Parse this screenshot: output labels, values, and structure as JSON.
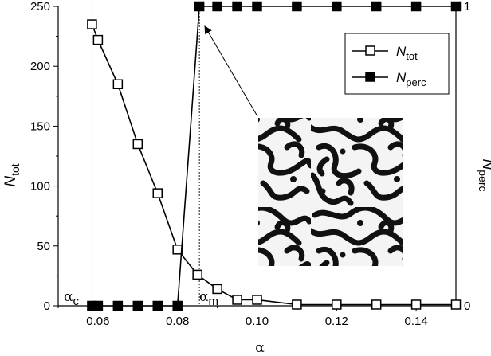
{
  "chart_data": {
    "type": "line",
    "xlabel": "α",
    "xlim": [
      0.05,
      0.15
    ],
    "x_ticks": [
      "0.06",
      "0.08",
      "0.10",
      "0.12",
      "0.14"
    ],
    "y_left": {
      "label_main": "N",
      "label_sub": "tot",
      "lim": [
        0,
        250
      ],
      "ticks": [
        "0",
        "50",
        "100",
        "150",
        "200",
        "250"
      ]
    },
    "y_right": {
      "label_main": "N",
      "label_sub": "perc",
      "lim": [
        0,
        1
      ],
      "ticks": [
        "0",
        "1"
      ]
    },
    "series": [
      {
        "name_main": "N",
        "name_sub": "tot",
        "axis": "left",
        "marker": "open-square",
        "x": [
          0.0585,
          0.06,
          0.065,
          0.07,
          0.075,
          0.08,
          0.085,
          0.09,
          0.095,
          0.1,
          0.11,
          0.12,
          0.13,
          0.14,
          0.15
        ],
        "values": [
          235,
          222,
          185,
          135,
          94,
          47,
          26,
          14,
          5,
          5,
          1,
          1,
          1,
          1,
          1
        ]
      },
      {
        "name_main": "N",
        "name_sub": "perc",
        "axis": "right",
        "marker": "filled-square",
        "x": [
          0.0585,
          0.06,
          0.065,
          0.07,
          0.075,
          0.08,
          0.0855,
          0.09,
          0.095,
          0.1,
          0.11,
          0.12,
          0.13,
          0.14,
          0.15
        ],
        "values": [
          0,
          0,
          0,
          0,
          0,
          0,
          1,
          1,
          1,
          1,
          1,
          1,
          1,
          1,
          1
        ]
      }
    ],
    "vlines": [
      {
        "x": 0.0585,
        "label_main": "α",
        "label_sub": "c"
      },
      {
        "x": 0.0855,
        "label_main": "α",
        "label_sub": "m"
      }
    ],
    "legend_position": "top-right",
    "grid": false,
    "inset": "maze-like pattern image with arrow pointing to the first percolating point"
  }
}
